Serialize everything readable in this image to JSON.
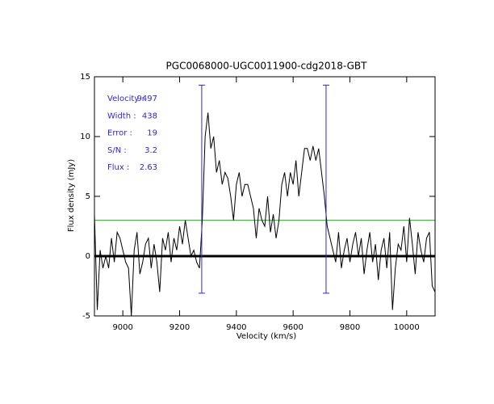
{
  "chart_data": {
    "type": "line",
    "title": "PGC0068000-UGC0011900-cdg2018-GBT",
    "xlabel": "Velocity (km/s)",
    "ylabel": "Flux density (mJy)",
    "xlim": [
      8900,
      10100
    ],
    "ylim": [
      -5,
      15
    ],
    "xticks": [
      9000,
      9200,
      9400,
      9600,
      9800,
      10000
    ],
    "yticks": [
      -5,
      0,
      5,
      10,
      15
    ],
    "x": [
      8900,
      8910,
      8920,
      8930,
      8940,
      8950,
      8960,
      8970,
      8980,
      8990,
      9000,
      9010,
      9020,
      9030,
      9040,
      9050,
      9060,
      9070,
      9080,
      9090,
      9100,
      9110,
      9120,
      9130,
      9140,
      9150,
      9160,
      9170,
      9180,
      9190,
      9200,
      9210,
      9220,
      9230,
      9240,
      9250,
      9260,
      9270,
      9280,
      9290,
      9300,
      9310,
      9320,
      9330,
      9340,
      9350,
      9360,
      9370,
      9380,
      9390,
      9400,
      9410,
      9420,
      9430,
      9440,
      9450,
      9460,
      9470,
      9480,
      9490,
      9500,
      9510,
      9520,
      9530,
      9540,
      9550,
      9560,
      9570,
      9580,
      9590,
      9600,
      9610,
      9620,
      9630,
      9640,
      9650,
      9660,
      9670,
      9680,
      9690,
      9700,
      9710,
      9720,
      9730,
      9740,
      9750,
      9760,
      9770,
      9780,
      9790,
      9800,
      9810,
      9820,
      9830,
      9840,
      9850,
      9860,
      9870,
      9880,
      9890,
      9900,
      9910,
      9920,
      9930,
      9940,
      9950,
      9960,
      9970,
      9980,
      9990,
      10000,
      10010,
      10020,
      10030,
      10040,
      10050,
      10060,
      10070,
      10080,
      10090,
      10100
    ],
    "series": [
      {
        "color": "#000000",
        "values": [
          3.5,
          -4.5,
          0.5,
          -1,
          0,
          -1,
          1.5,
          -0.5,
          2,
          1.5,
          0.5,
          -0.5,
          -1,
          -5,
          0.5,
          2,
          -1.5,
          -0.5,
          1,
          1.5,
          -1,
          1,
          -0.5,
          -3,
          1.5,
          0.5,
          2,
          -0.5,
          1.5,
          0.5,
          2.5,
          1,
          3,
          1.5,
          0,
          0.5,
          -0.5,
          -1,
          3,
          10,
          12,
          9,
          10,
          7,
          8,
          6,
          7,
          6.5,
          5,
          3,
          6,
          7,
          5,
          6,
          6,
          5,
          4,
          1.5,
          4,
          3,
          2.5,
          5,
          2,
          3.5,
          1.5,
          3,
          6,
          7,
          5,
          7,
          6,
          8,
          5,
          7,
          9,
          9,
          8,
          9.2,
          8,
          9,
          7,
          5,
          2.5,
          1.5,
          0.5,
          -0.5,
          2,
          -1,
          0.5,
          1.5,
          -0.5,
          1,
          2,
          0,
          1.5,
          -1.5,
          0.5,
          2,
          -0.5,
          1,
          -2,
          0.5,
          1.5,
          -1,
          2,
          -4.5,
          -1,
          1,
          0.5,
          2.5,
          -0.5,
          3.2,
          1,
          -1.5,
          2,
          0.5,
          -0.5,
          1.5,
          2,
          -2.5,
          -3
        ]
      }
    ],
    "hlines": [
      {
        "value": 0,
        "color": "#000000"
      },
      {
        "value": 3,
        "color": "#00c000"
      }
    ],
    "vlines": [
      {
        "value": 9278,
        "ymin": -3.1,
        "ymax": 14.3,
        "color": "#2a2ad0"
      },
      {
        "value": 9716,
        "ymin": -3.1,
        "ymax": 14.3,
        "color": "#2a2ad0"
      }
    ],
    "annotations": [
      {
        "label": "Velocity :",
        "value": 9497
      },
      {
        "label": "Width :",
        "value": 438
      },
      {
        "label": "Error :",
        "value": 19
      },
      {
        "label": "S/N :",
        "value": 3.2
      },
      {
        "label": "Flux :",
        "value": 2.63
      }
    ]
  }
}
